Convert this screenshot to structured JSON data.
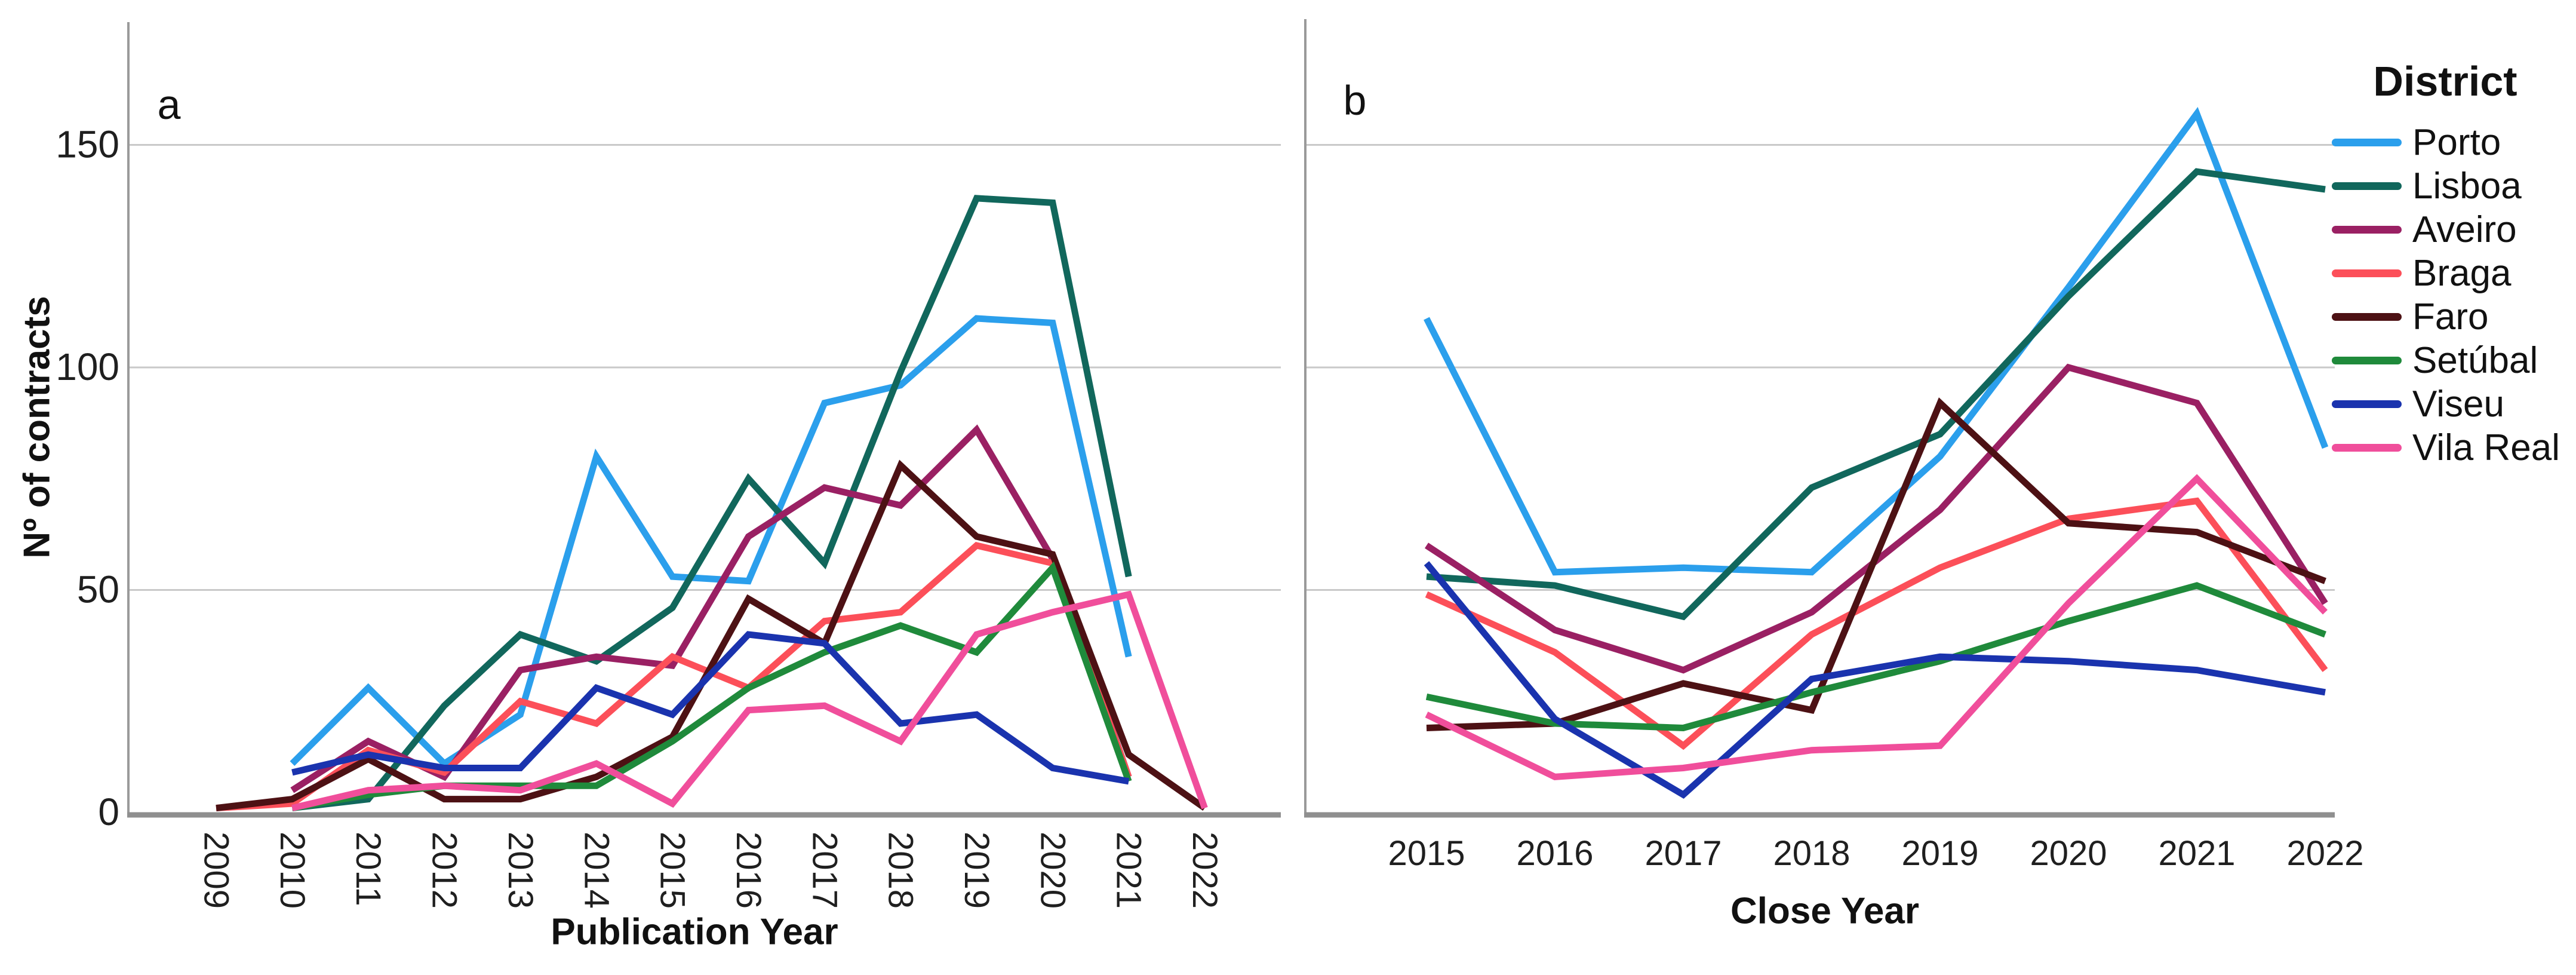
{
  "figure": {
    "panel_a_label": "a",
    "panel_b_label": "b"
  },
  "y_axis": {
    "title": "Nº of contracts"
  },
  "legend": {
    "title": "District"
  },
  "colors": {
    "grid": "#c9c9c9",
    "axis": "#8f8f8f",
    "tick_text": "#1f1f1f"
  },
  "chart_data": [
    {
      "id": "a",
      "type": "line",
      "panel_label": "a",
      "xlabel": "Publication Year",
      "ylabel": "Nº of contracts",
      "ylim": [
        0,
        178
      ],
      "yticks": [
        0,
        50,
        100,
        150
      ],
      "gridlines": [
        50,
        100,
        150
      ],
      "categories": [
        2009,
        2010,
        2011,
        2012,
        2013,
        2014,
        2015,
        2016,
        2017,
        2018,
        2019,
        2020,
        2021,
        2022
      ],
      "series": [
        {
          "name": "Porto",
          "color": "#2b9fec",
          "values": [
            null,
            11,
            28,
            11,
            22,
            80,
            53,
            52,
            92,
            96,
            111,
            110,
            35,
            null
          ]
        },
        {
          "name": "Lisboa",
          "color": "#11675c",
          "values": [
            null,
            1,
            3,
            24,
            40,
            34,
            46,
            75,
            56,
            99,
            138,
            137,
            53,
            null
          ]
        },
        {
          "name": "Aveiro",
          "color": "#9a2063",
          "values": [
            null,
            5,
            16,
            8,
            32,
            35,
            33,
            62,
            73,
            69,
            86,
            57,
            8,
            null
          ]
        },
        {
          "name": "Braga",
          "color": "#fc4f59",
          "values": [
            1,
            2,
            14,
            9,
            25,
            20,
            35,
            28,
            43,
            45,
            60,
            56,
            8,
            null
          ]
        },
        {
          "name": "Faro",
          "color": "#4d1114",
          "values": [
            1,
            3,
            12,
            3,
            3,
            8,
            17,
            48,
            38,
            78,
            62,
            58,
            13,
            1
          ]
        },
        {
          "name": "Setúbal",
          "color": "#1f8a3b",
          "values": [
            null,
            1,
            4,
            6,
            6,
            6,
            16,
            28,
            36,
            42,
            36,
            55,
            7,
            null
          ]
        },
        {
          "name": "Viseu",
          "color": "#1a33ae",
          "values": [
            null,
            9,
            13,
            10,
            10,
            28,
            22,
            40,
            38,
            20,
            22,
            10,
            7,
            null
          ]
        },
        {
          "name": "Vila Real",
          "color": "#f04e9b",
          "values": [
            null,
            1,
            5,
            6,
            5,
            11,
            2,
            23,
            24,
            16,
            40,
            45,
            49,
            1
          ]
        }
      ]
    },
    {
      "id": "b",
      "type": "line",
      "panel_label": "b",
      "xlabel": "Close Year",
      "ylabel": "Nº of contracts",
      "ylim": [
        0,
        178
      ],
      "yticks": [],
      "gridlines": [
        50,
        100,
        150
      ],
      "categories": [
        2015,
        2016,
        2017,
        2018,
        2019,
        2020,
        2021,
        2022
      ],
      "series": [
        {
          "name": "Porto",
          "color": "#2b9fec",
          "values": [
            111,
            54,
            55,
            54,
            80,
            118,
            157,
            82
          ]
        },
        {
          "name": "Lisboa",
          "color": "#11675c",
          "values": [
            53,
            51,
            44,
            73,
            85,
            116,
            144,
            140
          ]
        },
        {
          "name": "Aveiro",
          "color": "#9a2063",
          "values": [
            60,
            41,
            32,
            45,
            68,
            100,
            92,
            47
          ]
        },
        {
          "name": "Braga",
          "color": "#fc4f59",
          "values": [
            49,
            36,
            15,
            40,
            55,
            66,
            70,
            32
          ]
        },
        {
          "name": "Faro",
          "color": "#4d1114",
          "values": [
            19,
            20,
            29,
            23,
            92,
            65,
            63,
            52
          ]
        },
        {
          "name": "Setúbal",
          "color": "#1f8a3b",
          "values": [
            26,
            20,
            19,
            27,
            34,
            43,
            51,
            40
          ]
        },
        {
          "name": "Viseu",
          "color": "#1a33ae",
          "values": [
            56,
            21,
            4,
            30,
            35,
            34,
            32,
            27
          ]
        },
        {
          "name": "Vila Real",
          "color": "#f04e9b",
          "values": [
            22,
            8,
            10,
            14,
            15,
            47,
            75,
            45
          ]
        }
      ]
    }
  ]
}
